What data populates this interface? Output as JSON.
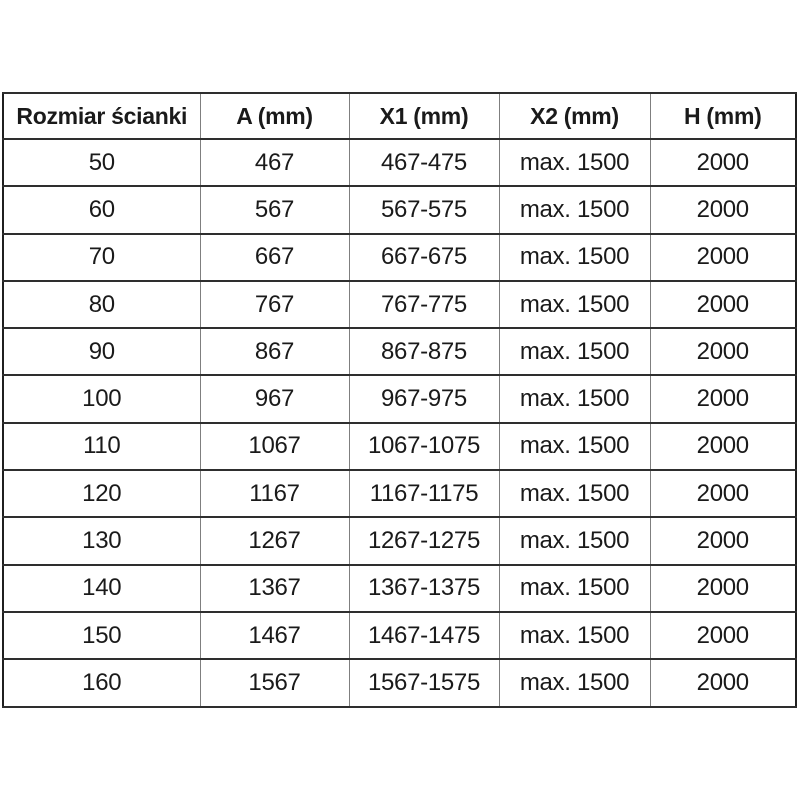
{
  "table": {
    "columns": [
      "Rozmiar ścianki",
      "A (mm)",
      "X1 (mm)",
      "X2 (mm)",
      "H (mm)"
    ],
    "rows": [
      [
        "50",
        "467",
        "467-475",
        "max. 1500",
        "2000"
      ],
      [
        "60",
        "567",
        "567-575",
        "max. 1500",
        "2000"
      ],
      [
        "70",
        "667",
        "667-675",
        "max. 1500",
        "2000"
      ],
      [
        "80",
        "767",
        "767-775",
        "max. 1500",
        "2000"
      ],
      [
        "90",
        "867",
        "867-875",
        "max. 1500",
        "2000"
      ],
      [
        "100",
        "967",
        "967-975",
        "max. 1500",
        "2000"
      ],
      [
        "110",
        "1067",
        "1067-1075",
        "max. 1500",
        "2000"
      ],
      [
        "120",
        "1167",
        "1167-1175",
        "max. 1500",
        "2000"
      ],
      [
        "130",
        "1267",
        "1267-1275",
        "max. 1500",
        "2000"
      ],
      [
        "140",
        "1367",
        "1367-1375",
        "max. 1500",
        "2000"
      ],
      [
        "150",
        "1467",
        "1467-1475",
        "max. 1500",
        "2000"
      ],
      [
        "160",
        "1567",
        "1567-1575",
        "max. 1500",
        "2000"
      ]
    ]
  },
  "colors": {
    "background": "#ffffff",
    "text": "#1a1a1a",
    "outer_border": "#1f1f1f",
    "horizontal_rule": "#2e2e2e",
    "vertical_rule": "#7f7f7f"
  }
}
